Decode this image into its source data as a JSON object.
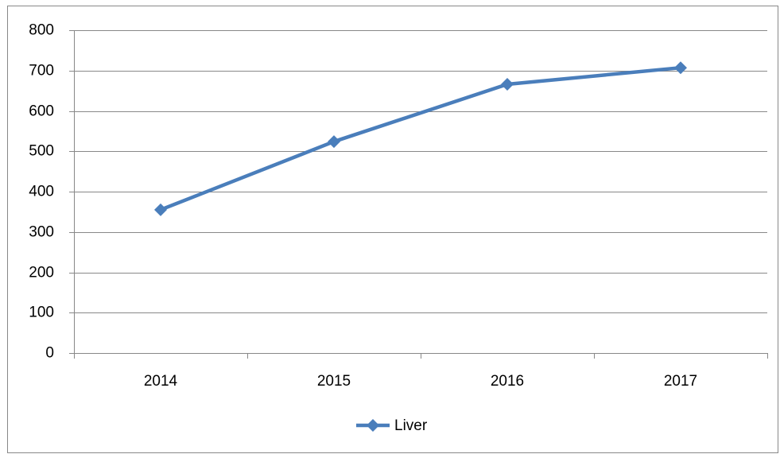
{
  "chart_data": {
    "type": "line",
    "categories": [
      "2014",
      "2015",
      "2016",
      "2017"
    ],
    "series": [
      {
        "name": "Liver",
        "color": "#4a7ebb",
        "values": [
          355,
          524,
          666,
          707
        ]
      }
    ],
    "ylim": [
      0,
      800
    ],
    "yticks": [
      0,
      100,
      200,
      300,
      400,
      500,
      600,
      700,
      800
    ],
    "grid": true,
    "legend": "bottom"
  }
}
